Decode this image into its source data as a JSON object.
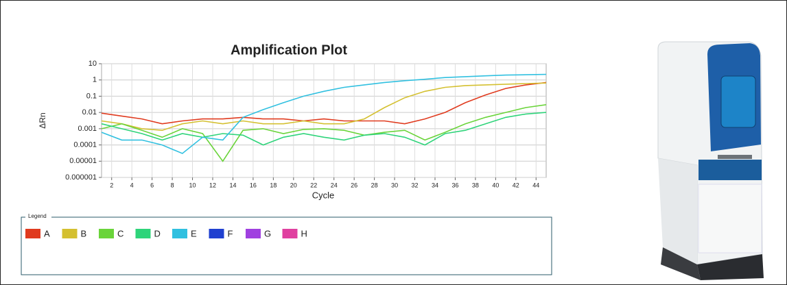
{
  "chart_data": {
    "type": "line",
    "title": "Amplification Plot",
    "x_label": "Cycle",
    "y_label": "ΔRn",
    "legend_title": "Legend",
    "log_y": true,
    "grid": true,
    "xlim": [
      1,
      45
    ],
    "xticks": [
      2,
      4,
      6,
      8,
      10,
      12,
      14,
      16,
      18,
      20,
      22,
      24,
      26,
      28,
      30,
      32,
      34,
      36,
      38,
      40,
      42,
      44
    ],
    "ylim": [
      1e-06,
      10
    ],
    "yticks": [
      1e-06,
      1e-05,
      0.0001,
      0.001,
      0.01,
      0.1,
      1,
      10
    ],
    "x": [
      1,
      3,
      5,
      7,
      9,
      11,
      13,
      15,
      17,
      19,
      21,
      23,
      25,
      27,
      29,
      31,
      33,
      35,
      37,
      39,
      41,
      43,
      45
    ],
    "series": [
      {
        "name": "A",
        "color": "#e03a1e",
        "values": [
          0.009,
          0.006,
          0.004,
          0.002,
          0.003,
          0.004,
          0.004,
          0.005,
          0.004,
          0.004,
          0.003,
          0.004,
          0.003,
          0.003,
          0.003,
          0.002,
          0.004,
          0.01,
          0.04,
          0.12,
          0.3,
          0.5,
          0.7
        ]
      },
      {
        "name": "B",
        "color": "#d4c030",
        "values": [
          0.003,
          0.002,
          0.001,
          0.0008,
          0.002,
          0.003,
          0.002,
          0.003,
          0.002,
          0.002,
          0.003,
          0.002,
          0.002,
          0.004,
          0.02,
          0.08,
          0.2,
          0.35,
          0.45,
          0.5,
          0.55,
          0.6,
          0.65
        ]
      },
      {
        "name": "C",
        "color": "#6ad43a",
        "values": [
          0.001,
          0.002,
          0.0008,
          0.0003,
          0.001,
          0.0005,
          1e-05,
          0.0008,
          0.001,
          0.0005,
          0.0009,
          0.001,
          0.0008,
          0.0004,
          0.0006,
          0.0008,
          0.0002,
          0.0006,
          0.002,
          0.005,
          0.01,
          0.02,
          0.03
        ]
      },
      {
        "name": "D",
        "color": "#2ed47a",
        "values": [
          0.002,
          0.001,
          0.0005,
          0.0002,
          0.0005,
          0.0003,
          0.0005,
          0.0004,
          0.0001,
          0.0003,
          0.0005,
          0.0003,
          0.0002,
          0.0004,
          0.0005,
          0.0003,
          0.0001,
          0.0005,
          0.0008,
          0.002,
          0.005,
          0.008,
          0.01
        ]
      },
      {
        "name": "E",
        "color": "#30c0e0",
        "values": [
          0.0006,
          0.0002,
          0.0002,
          0.0001,
          3e-05,
          0.0003,
          0.0002,
          0.005,
          0.015,
          0.04,
          0.1,
          0.2,
          0.35,
          0.5,
          0.7,
          0.9,
          1.1,
          1.4,
          1.6,
          1.8,
          2,
          2.1,
          2.2
        ]
      },
      {
        "name": "F",
        "color": "#2040d0",
        "values": [
          null,
          null,
          null,
          null,
          null,
          null,
          null,
          null,
          null,
          null,
          null,
          null,
          null,
          null,
          null,
          null,
          null,
          null,
          null,
          null,
          null,
          null,
          null
        ]
      },
      {
        "name": "G",
        "color": "#a040e0",
        "values": [
          null,
          null,
          null,
          null,
          null,
          null,
          null,
          null,
          null,
          null,
          null,
          null,
          null,
          null,
          null,
          null,
          null,
          null,
          null,
          null,
          null,
          null,
          null
        ]
      },
      {
        "name": "H",
        "color": "#e040a0",
        "values": [
          null,
          null,
          null,
          null,
          null,
          null,
          null,
          null,
          null,
          null,
          null,
          null,
          null,
          null,
          null,
          null,
          null,
          null,
          null,
          null,
          null,
          null,
          null
        ]
      }
    ]
  }
}
